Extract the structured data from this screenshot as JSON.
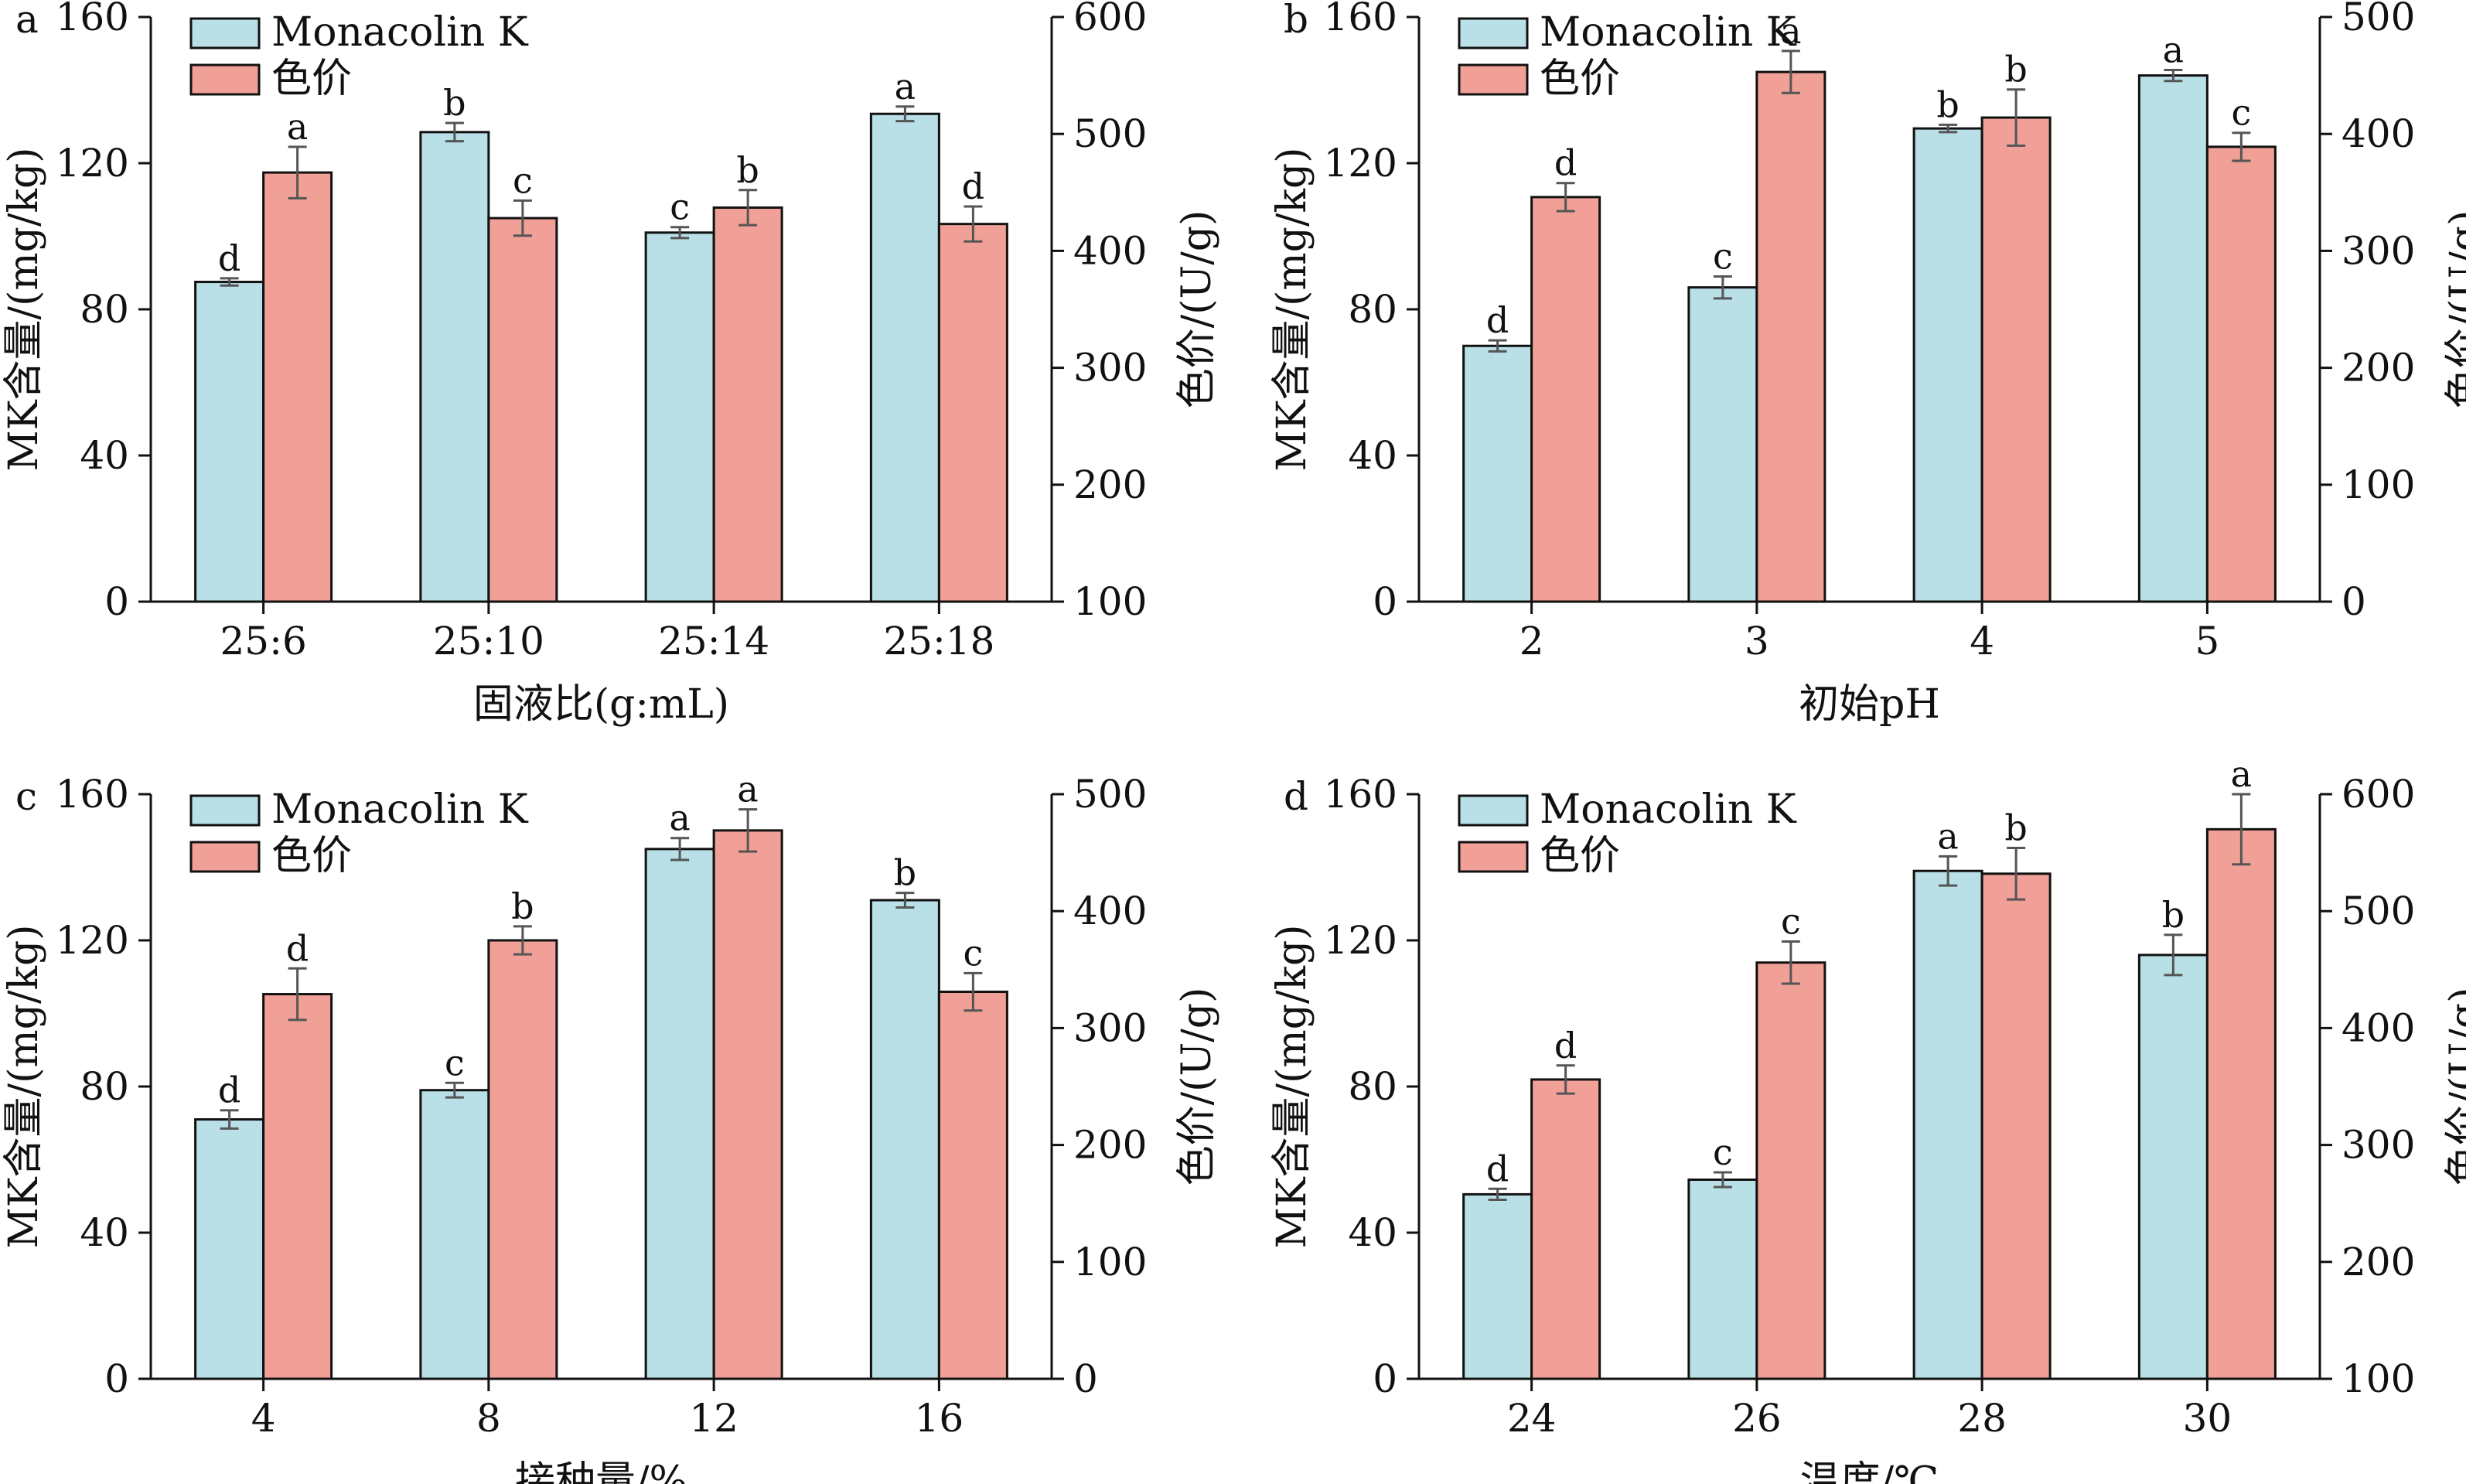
{
  "colors": {
    "mk": "#b8e0e6",
    "color_value": "#f0a096",
    "axis": "#111111",
    "error": "#555555"
  },
  "chart_data": [
    {
      "panel": "a",
      "type": "bar",
      "categories": [
        "25:6",
        "25:10",
        "25:14",
        "25:18"
      ],
      "xlabel": "固液比(g:mL)",
      "ylabel_left": "MK含量/(mg/kg)",
      "ylabel_right": "色价/(U/g)",
      "ylim_left": [
        0,
        160
      ],
      "yticks_left": [
        0,
        40,
        80,
        120,
        160
      ],
      "ylim_right": [
        100,
        600
      ],
      "yticks_right": [
        100,
        200,
        300,
        400,
        500,
        600
      ],
      "legend": [
        "Monacolin K",
        "色价"
      ],
      "series": [
        {
          "name": "Monacolin K",
          "axis": "left",
          "values": [
            87.5,
            128.5,
            101,
            133.5
          ],
          "errors": [
            1,
            2.5,
            1.5,
            2
          ],
          "letters": [
            "d",
            "b",
            "c",
            "a"
          ]
        },
        {
          "name": "色价",
          "axis": "right",
          "values": [
            467,
            428,
            437,
            423
          ],
          "errors": [
            22,
            15,
            15,
            15
          ],
          "letters": [
            "a",
            "c",
            "b",
            "d"
          ]
        }
      ]
    },
    {
      "panel": "b",
      "type": "bar",
      "categories": [
        "2",
        "3",
        "4",
        "5"
      ],
      "xlabel": "初始pH",
      "ylabel_left": "MK含量/(mg/kg)",
      "ylabel_right": "色价/(U/g)",
      "ylim_left": [
        0,
        160
      ],
      "yticks_left": [
        0,
        40,
        80,
        120,
        160
      ],
      "ylim_right": [
        0,
        500
      ],
      "yticks_right": [
        0,
        100,
        200,
        300,
        400,
        500
      ],
      "legend": [
        "Monacolin K",
        "色价"
      ],
      "series": [
        {
          "name": "Monacolin K",
          "axis": "left",
          "values": [
            70,
            86,
            129.5,
            144
          ],
          "errors": [
            1.5,
            3,
            1,
            1.5
          ],
          "letters": [
            "d",
            "c",
            "b",
            "a"
          ]
        },
        {
          "name": "色价",
          "axis": "right",
          "values": [
            346,
            453,
            414,
            389
          ],
          "errors": [
            12,
            18,
            24,
            12
          ],
          "letters": [
            "d",
            "a",
            "b",
            "c"
          ]
        }
      ]
    },
    {
      "panel": "c",
      "type": "bar",
      "categories": [
        "4",
        "8",
        "12",
        "16"
      ],
      "xlabel": "接种量/%",
      "ylabel_left": "MK含量/(mg/kg)",
      "ylabel_right": "色价/(U/g)",
      "ylim_left": [
        0,
        160
      ],
      "yticks_left": [
        0,
        40,
        80,
        120,
        160
      ],
      "ylim_right": [
        0,
        500
      ],
      "yticks_right": [
        0,
        100,
        200,
        300,
        400,
        500
      ],
      "legend": [
        "Monacolin K",
        "色价"
      ],
      "series": [
        {
          "name": "Monacolin K",
          "axis": "left",
          "values": [
            71,
            79,
            145,
            131
          ],
          "errors": [
            2.5,
            2,
            3,
            2
          ],
          "letters": [
            "d",
            "c",
            "a",
            "b"
          ]
        },
        {
          "name": "色价",
          "axis": "right",
          "values": [
            329,
            375,
            469,
            331
          ],
          "errors": [
            22,
            12,
            18,
            16
          ],
          "letters": [
            "d",
            "b",
            "a",
            "c"
          ]
        }
      ]
    },
    {
      "panel": "d",
      "type": "bar",
      "categories": [
        "24",
        "26",
        "28",
        "30"
      ],
      "xlabel": "温度/℃",
      "ylabel_left": "MK含量/(mg/kg)",
      "ylabel_right": "色价/(U/g)",
      "ylim_left": [
        0,
        160
      ],
      "yticks_left": [
        0,
        40,
        80,
        120,
        160
      ],
      "ylim_right": [
        100,
        600
      ],
      "yticks_right": [
        100,
        200,
        300,
        400,
        500,
        600
      ],
      "legend": [
        "Monacolin K",
        "色价"
      ],
      "series": [
        {
          "name": "Monacolin K",
          "axis": "left",
          "values": [
            50.5,
            54.5,
            139,
            116
          ],
          "errors": [
            1.5,
            2,
            4,
            5.5
          ],
          "letters": [
            "d",
            "c",
            "a",
            "b"
          ]
        },
        {
          "name": "色价",
          "axis": "right",
          "values": [
            356,
            456,
            532,
            570
          ],
          "errors": [
            12,
            18,
            22,
            30
          ],
          "letters": [
            "d",
            "c",
            "b",
            "a"
          ]
        }
      ]
    }
  ]
}
